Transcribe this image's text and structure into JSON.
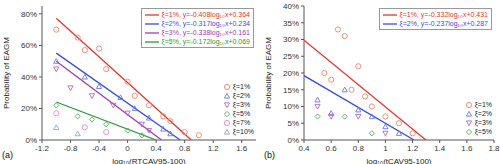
{
  "chart_data": [
    {
      "type": "scatter",
      "title": "(a)",
      "x_label": "log₁₀(RTCAV95-100)",
      "y_label": "Probability of EAGM",
      "xlim": [
        -1.2,
        1.8
      ],
      "xticks": [
        -1.2,
        -0.8,
        -0.4,
        0,
        0.4,
        0.8,
        1.2,
        1.6
      ],
      "ylim": [
        0,
        85
      ],
      "yticks": [
        {
          "value": 0,
          "label": "0%"
        },
        {
          "value": 20,
          "label": "20%"
        },
        {
          "value": 40,
          "label": "40%"
        },
        {
          "value": 60,
          "label": "60%"
        },
        {
          "value": 80,
          "label": "80%"
        }
      ],
      "grid": false,
      "legend": "right",
      "series": [
        {
          "name": "ξ=1%, y=-0.408log₁₀x+0.364",
          "type": "line",
          "line_style": "solid",
          "color": "#e8352e",
          "x": [
            -1.0,
            0.892
          ],
          "values": [
            77.2,
            0
          ]
        },
        {
          "name": "ξ=2%, y=-0.317log₁₀x+0.234",
          "type": "line",
          "line_style": "solid",
          "color": "#3a4fd8",
          "x": [
            -1.0,
            0.738
          ],
          "values": [
            55.1,
            0
          ]
        },
        {
          "name": "ξ=3%, y=-0.338log₁₀x+0.161",
          "type": "line",
          "line_style": "solid",
          "color": "#a23bb5",
          "x": [
            -1.0,
            0.476
          ],
          "values": [
            49.9,
            0
          ]
        },
        {
          "name": "ξ=5%, y=-0.172log₁₀x+0.069",
          "type": "line",
          "line_style": "solid",
          "color": "#2e9a3a",
          "x": [
            -1.0,
            0.401
          ],
          "values": [
            24.1,
            0
          ]
        },
        {
          "name": "ξ=1%",
          "type": "scatter",
          "marker": "circle",
          "color": "#f2846a",
          "x": [
            -1.0,
            -0.7,
            -0.6,
            -0.4,
            -0.3,
            0.0,
            0.1,
            0.3,
            0.5,
            0.6,
            0.8,
            1.0
          ],
          "values": [
            70,
            65,
            57,
            58,
            45,
            37,
            28,
            22,
            15,
            12,
            5,
            3
          ]
        },
        {
          "name": "ξ=2%",
          "type": "scatter",
          "marker": "triangle",
          "color": "#6b7be0",
          "x": [
            -1.0,
            -0.6,
            -0.4,
            -0.1,
            0.1,
            0.3,
            0.5,
            0.6
          ],
          "values": [
            50,
            40,
            34,
            27,
            20,
            14,
            7,
            4
          ]
        },
        {
          "name": "ξ=3%",
          "type": "scatter",
          "marker": "triangle-down",
          "color": "#b566c8",
          "x": [
            -1.0,
            -0.8,
            -0.5,
            -0.2,
            0.0,
            0.2,
            0.3
          ],
          "values": [
            45,
            33,
            28,
            22,
            17,
            10,
            6
          ]
        },
        {
          "name": "ξ=5%",
          "type": "scatter",
          "marker": "diamond",
          "color": "#4fb05a",
          "x": [
            -1.0,
            -0.7,
            -0.5,
            -0.3,
            0.0,
            0.2
          ],
          "values": [
            22,
            15,
            13,
            10,
            6,
            3
          ]
        },
        {
          "name": "ξ=7%",
          "type": "scatter",
          "marker": "circle",
          "color": "#e08ad8",
          "x": [
            -1.0,
            -0.6,
            -0.3
          ],
          "values": [
            17,
            8,
            5
          ]
        },
        {
          "name": "ξ=10%",
          "type": "scatter",
          "marker": "triangle",
          "color": "#8fa7d8",
          "x": [
            -1.0,
            -0.7
          ],
          "values": [
            8,
            4
          ]
        }
      ]
    },
    {
      "type": "scatter",
      "title": "(b)",
      "x_label": "log₁₀(tCAV95-100)",
      "y_label": "Probability of EAGM",
      "xlim": [
        0.4,
        1.8
      ],
      "xticks": [
        0.4,
        0.6,
        0.8,
        1,
        1.2,
        1.4,
        1.6,
        1.8
      ],
      "ylim": [
        0,
        40
      ],
      "yticks": [
        {
          "value": 0,
          "label": "0%"
        },
        {
          "value": 5,
          "label": "5%"
        },
        {
          "value": 10,
          "label": "10%"
        },
        {
          "value": 15,
          "label": "15%"
        },
        {
          "value": 20,
          "label": "20%"
        },
        {
          "value": 25,
          "label": "25%"
        },
        {
          "value": 30,
          "label": "30%"
        },
        {
          "value": 35,
          "label": "35%"
        },
        {
          "value": 40,
          "label": "40%"
        }
      ],
      "grid": false,
      "legend": "right",
      "series": [
        {
          "name": "ξ=1%, y=-0.332log₁₀x+0.431",
          "type": "line",
          "line_style": "solid",
          "color": "#e8352e",
          "x": [
            0.4,
            1.298
          ],
          "values": [
            29.8,
            0
          ]
        },
        {
          "name": "ξ=2%, y=-0.237log₁₀x+0.287",
          "type": "line",
          "line_style": "solid",
          "color": "#3a4fd8",
          "x": [
            0.4,
            1.211
          ],
          "values": [
            19.2,
            0
          ]
        },
        {
          "name": "ξ=1%",
          "type": "scatter",
          "marker": "circle",
          "color": "#f2846a",
          "x": [
            0.55,
            0.6,
            0.65,
            0.7,
            0.75,
            0.8,
            0.85,
            0.9,
            1.0,
            1.1,
            1.2
          ],
          "values": [
            20,
            18,
            33,
            31,
            15,
            22,
            13,
            10,
            7,
            5,
            2
          ]
        },
        {
          "name": "ξ=2%",
          "type": "scatter",
          "marker": "triangle",
          "color": "#6b7be0",
          "x": [
            0.5,
            0.6,
            0.7,
            0.8,
            0.9,
            1.0,
            1.1
          ],
          "values": [
            12,
            8,
            15,
            9,
            7,
            4,
            2
          ]
        },
        {
          "name": "ξ=3%",
          "type": "scatter",
          "marker": "triangle-down",
          "color": "#b566c8",
          "x": [
            0.5,
            0.6,
            0.8,
            1.0
          ],
          "values": [
            10,
            7,
            7,
            2
          ]
        },
        {
          "name": "ξ=5%",
          "type": "scatter",
          "marker": "diamond",
          "color": "#4fb05a",
          "x": [
            0.5,
            0.7,
            0.9
          ],
          "values": [
            7,
            7,
            2
          ]
        }
      ]
    }
  ]
}
